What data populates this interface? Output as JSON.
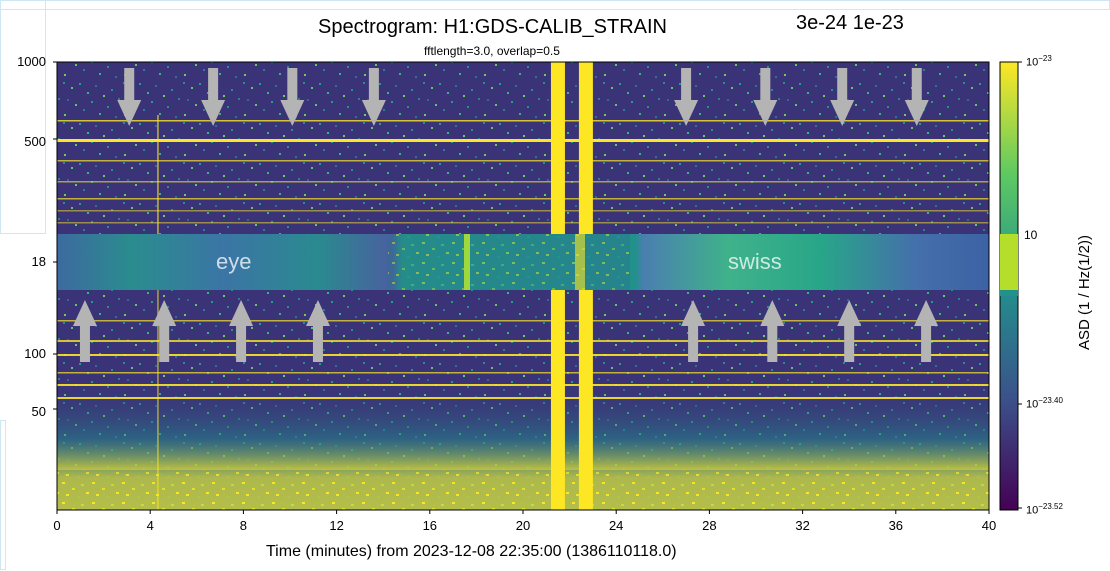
{
  "header": {
    "title": "Spectrogram: H1:GDS-CALIB_STRAIN",
    "subtitle": "fftlength=3.0, overlap=0.5",
    "scale_note": "3e-24 1e-23"
  },
  "overlay": {
    "left_label": "eye",
    "right_label": "swiss",
    "row_label": "18"
  },
  "colorbar": {
    "label_top": "10",
    "label_top_exp": "−23",
    "label_mid": "10",
    "label_mid_exp": "−23.40",
    "label_bot": "10",
    "label_bot_exp": "−23.52",
    "label_partial": "10",
    "title": "ASD (1 / Hz(1/2))",
    "colors": [
      "#440154",
      "#3b528b",
      "#21918c",
      "#5ec962",
      "#fde725"
    ]
  },
  "arrow_color": "#b4b4b4",
  "chart_data": {
    "type": "heatmap",
    "title": "Spectrogram: H1:GDS-CALIB_STRAIN",
    "subtitle": "fftlength=3.0, overlap=0.5",
    "xlabel": "Time (minutes) from 2023-12-08 22:35:00 (1386110118.0)",
    "ylabel": "",
    "xlim": [
      0,
      40
    ],
    "x_ticks": [
      "0",
      "4",
      "8",
      "12",
      "16",
      "20",
      "24",
      "28",
      "32",
      "36",
      "40"
    ],
    "y_ticks_top": [
      "1000",
      "500"
    ],
    "y_ticks_bottom": [
      "100",
      "50"
    ],
    "colorbar_label": "ASD (1 / Hz(1/2))",
    "colorbar_ticks": [
      "10^-23",
      "10^-23.40",
      "10^-23.52"
    ],
    "loud_bands_minutes": [
      [
        21.2,
        21.8
      ],
      [
        22.4,
        23.0
      ]
    ],
    "down_arrow_minutes": [
      3.1,
      6.7,
      10.1,
      13.6,
      27.0,
      30.4,
      33.7,
      36.9
    ],
    "up_arrow_minutes": [
      1.2,
      4.6,
      7.9,
      11.2,
      27.3,
      30.7,
      34.0,
      37.3
    ]
  }
}
